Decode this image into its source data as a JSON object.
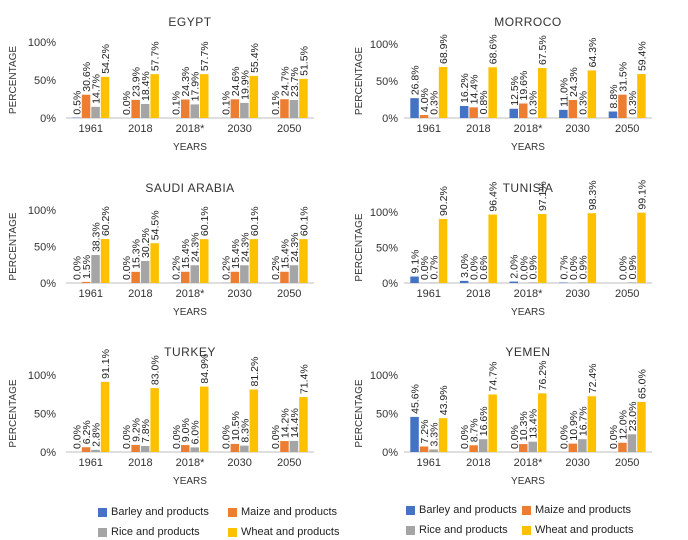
{
  "colors": {
    "barley": "#4472c4",
    "maize": "#ed7d31",
    "rice": "#a5a5a5",
    "wheat": "#ffc000",
    "axis": "#bfbfbf"
  },
  "legend": {
    "barley": "Barley and products",
    "maize": "Maize and products",
    "rice": "Rice and products",
    "wheat": "Wheat and products"
  },
  "chart_data": [
    {
      "type": "bar",
      "title": "EGYPT",
      "xlabel": "YEARS",
      "ylabel": "PERCENTAGE",
      "yticks": [
        "0%",
        "50%",
        "100%"
      ],
      "ylim": [
        0,
        100
      ],
      "categories": [
        "1961",
        "2018",
        "2018*",
        "2030",
        "2050"
      ],
      "series": [
        {
          "name": "Barley and products",
          "values": [
            0.5,
            0.0,
            0.1,
            0.1,
            0.1
          ],
          "labels": [
            "0.5%",
            "0.0%",
            "0.1%",
            "0.1%",
            "0.1%"
          ]
        },
        {
          "name": "Maize and products",
          "values": [
            30.6,
            23.9,
            24.3,
            24.6,
            24.7
          ],
          "labels": [
            "30.6%",
            "23.9%",
            "24.3%",
            "24.6%",
            "24.7%"
          ]
        },
        {
          "name": "Rice and products",
          "values": [
            14.7,
            18.4,
            17.9,
            19.9,
            23.7
          ],
          "labels": [
            "14.7%",
            "18.4%",
            "17.9%",
            "19.9%",
            "23.7%"
          ]
        },
        {
          "name": "Wheat and products",
          "values": [
            54.2,
            57.7,
            57.7,
            55.4,
            51.5
          ],
          "labels": [
            "54.2%",
            "57.7%",
            "57.7%",
            "55.4%",
            "51.5%"
          ]
        }
      ]
    },
    {
      "type": "bar",
      "title": "MORROCO",
      "xlabel": "YEARS",
      "ylabel": "PERCENTAGE",
      "yticks": [
        "0%",
        "50%",
        "100%"
      ],
      "ylim": [
        0,
        100
      ],
      "categories": [
        "1961",
        "2018",
        "2018*",
        "2030",
        "2050"
      ],
      "series": [
        {
          "name": "Barley and products",
          "values": [
            26.8,
            16.2,
            12.5,
            11.0,
            8.8
          ],
          "labels": [
            "26.8%",
            "16.2%",
            "12.5%",
            "11.0%",
            "8.8%"
          ]
        },
        {
          "name": "Maize and products",
          "values": [
            4.0,
            14.4,
            19.6,
            24.3,
            31.5
          ],
          "labels": [
            "4.0%",
            "14.4%",
            "19.6%",
            "24.3%",
            "31.5%"
          ]
        },
        {
          "name": "Rice and products",
          "values": [
            0.3,
            0.8,
            0.3,
            0.3,
            0.3
          ],
          "labels": [
            "0.3%",
            "0.8%",
            "0.3%",
            "0.3%",
            "0.3%"
          ]
        },
        {
          "name": "Wheat and products",
          "values": [
            68.9,
            68.6,
            67.5,
            64.3,
            59.4
          ],
          "labels": [
            "68.9%",
            "68.6%",
            "67.5%",
            "64.3%",
            "59.4%"
          ]
        }
      ]
    },
    {
      "type": "bar",
      "title": "SAUDI ARABIA",
      "xlabel": "YEARS",
      "ylabel": "PERCENTAGE",
      "yticks": [
        "0%",
        "50%",
        "100%"
      ],
      "ylim": [
        0,
        100
      ],
      "categories": [
        "1961",
        "2018",
        "2018*",
        "2030",
        "2050"
      ],
      "series": [
        {
          "name": "Barley and products",
          "values": [
            0.0,
            0.0,
            0.2,
            0.2,
            0.2
          ],
          "labels": [
            "0.0%",
            "0.0%",
            "0.2%",
            "0.2%",
            "0.2%"
          ]
        },
        {
          "name": "Maize and products",
          "values": [
            1.5,
            15.3,
            15.4,
            15.4,
            15.4
          ],
          "labels": [
            "1.5%",
            "15.3%",
            "15.4%",
            "15.4%",
            "15.4%"
          ]
        },
        {
          "name": "Rice and products",
          "values": [
            38.3,
            30.2,
            24.3,
            24.3,
            24.3
          ],
          "labels": [
            "38.3%",
            "30.2%",
            "24.3%",
            "24.3%",
            "24.3%"
          ]
        },
        {
          "name": "Wheat and products",
          "values": [
            60.2,
            54.5,
            60.1,
            60.1,
            60.1
          ],
          "labels": [
            "60.2%",
            "54.5%",
            "60.1%",
            "60.1%",
            "60.1%"
          ]
        }
      ]
    },
    {
      "type": "bar",
      "title": "TUNISIA",
      "xlabel": "YEARS",
      "ylabel": "PERCENTAGE",
      "yticks": [
        "0%",
        "50%",
        "100%"
      ],
      "ylim": [
        0,
        100
      ],
      "categories": [
        "1961",
        "2018",
        "2018*",
        "2030",
        "2050"
      ],
      "series": [
        {
          "name": "Barley and products",
          "values": [
            9.1,
            3.0,
            2.0,
            0.7,
            null
          ],
          "labels": [
            "9.1%",
            "3.0%",
            "2.0%",
            "0.7%",
            ""
          ]
        },
        {
          "name": "Maize and products",
          "values": [
            0.0,
            0.0,
            0.0,
            0.0,
            0.0
          ],
          "labels": [
            "0.0%",
            "0.0%",
            "0.0%",
            "0.0%",
            "0.0%"
          ]
        },
        {
          "name": "Rice and products",
          "values": [
            0.7,
            0.6,
            0.9,
            0.9,
            0.9
          ],
          "labels": [
            "0.7%",
            "0.6%",
            "0.9%",
            "0.9%",
            "0.9%"
          ]
        },
        {
          "name": "Wheat and products",
          "values": [
            90.2,
            96.4,
            97.1,
            98.3,
            99.1
          ],
          "labels": [
            "90.2%",
            "96.4%",
            "97.1%",
            "98.3%",
            "99.1%"
          ]
        }
      ]
    },
    {
      "type": "bar",
      "title": "TURKEY",
      "xlabel": "YEARS",
      "ylabel": "PERCENTAGE",
      "yticks": [
        "0%",
        "50%",
        "100%"
      ],
      "ylim": [
        0,
        100
      ],
      "categories": [
        "1961",
        "2018",
        "2018*",
        "2030",
        "2050"
      ],
      "series": [
        {
          "name": "Barley and products",
          "values": [
            0.0,
            0.0,
            0.0,
            0.0,
            0.0
          ],
          "labels": [
            "0.0%",
            "0.0%",
            "0.0%",
            "0.0%",
            "0.0%"
          ]
        },
        {
          "name": "Maize and products",
          "values": [
            6.2,
            9.2,
            9.0,
            10.5,
            14.2
          ],
          "labels": [
            "6.2%",
            "9.2%",
            "9.0%",
            "10.5%",
            "14.2%"
          ]
        },
        {
          "name": "Rice and products",
          "values": [
            2.8,
            7.8,
            6.0,
            8.3,
            14.4
          ],
          "labels": [
            "2.8%",
            "7.8%",
            "6.0%",
            "8.3%",
            "14.4%"
          ]
        },
        {
          "name": "Wheat and products",
          "values": [
            91.1,
            83.0,
            84.9,
            81.2,
            71.4
          ],
          "labels": [
            "91.1%",
            "83.0%",
            "84.9%",
            "81.2%",
            "71.4%"
          ]
        }
      ]
    },
    {
      "type": "bar",
      "title": "YEMEN",
      "xlabel": "YEARS",
      "ylabel": "PERCENTAGE",
      "yticks": [
        "0%",
        "50%",
        "100%"
      ],
      "ylim": [
        0,
        100
      ],
      "categories": [
        "1961",
        "2018",
        "2018*",
        "2030",
        "2050"
      ],
      "series": [
        {
          "name": "Barley and products",
          "values": [
            45.6,
            0.0,
            0.0,
            0.0,
            0.0
          ],
          "labels": [
            "45.6%",
            "0.0%",
            "0.0%",
            "0.0%",
            "0.0%"
          ]
        },
        {
          "name": "Maize and products",
          "values": [
            7.2,
            8.7,
            10.3,
            10.9,
            12.0
          ],
          "labels": [
            "7.2%",
            "8.7%",
            "10.3%",
            "10.9%",
            "12.0%"
          ]
        },
        {
          "name": "Rice and products",
          "values": [
            3.3,
            16.6,
            13.4,
            16.7,
            23.0
          ],
          "labels": [
            "3.3%",
            "16.6%",
            "13.4%",
            "16.7%",
            "23.0%"
          ]
        },
        {
          "name": "Wheat and products",
          "values": [
            43.9,
            74.7,
            76.2,
            72.4,
            65.0
          ],
          "labels": [
            "43.9%",
            "74.7%",
            "76.2%",
            "72.4%",
            "65.0%"
          ]
        }
      ]
    }
  ]
}
